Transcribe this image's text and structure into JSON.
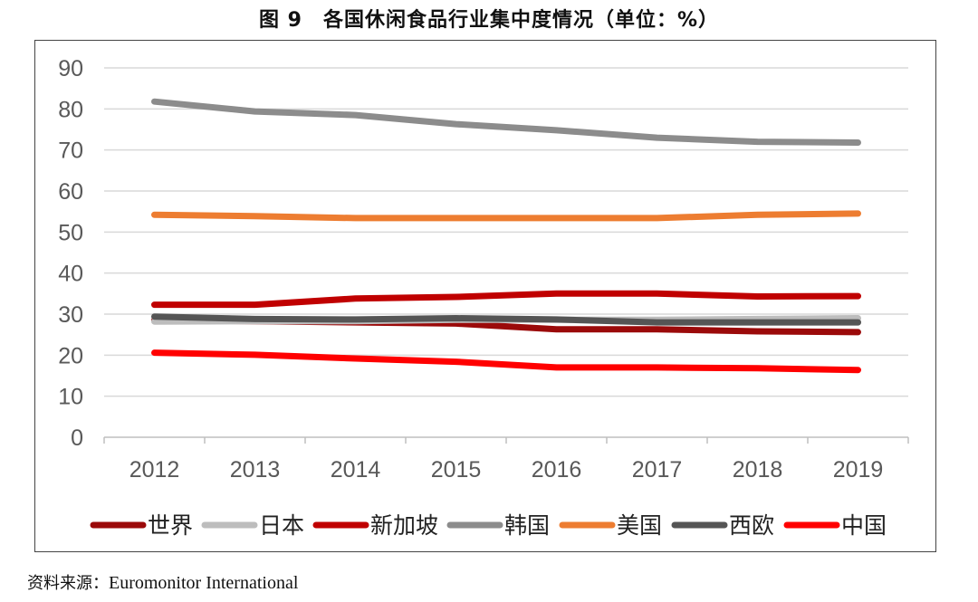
{
  "title": "图 9　各国休闲食品行业集中度情况（单位：%）",
  "source": {
    "label": "资料来源：",
    "text": "Euromonitor International"
  },
  "chart_data": {
    "type": "line",
    "categories": [
      "2012",
      "2013",
      "2014",
      "2015",
      "2016",
      "2017",
      "2018",
      "2019"
    ],
    "ylim": [
      0,
      90
    ],
    "yticks": [
      "0",
      "10",
      "20",
      "30",
      "40",
      "50",
      "60",
      "70",
      "80",
      "90"
    ],
    "grid": true,
    "legend_position": "bottom",
    "series": [
      {
        "name": "世界",
        "color": "#9b0a0a",
        "values": [
          28.5,
          28.3,
          28.0,
          27.7,
          26.3,
          26.3,
          25.8,
          25.6
        ]
      },
      {
        "name": "日本",
        "color": "#bdbdbd",
        "values": [
          28.2,
          28.3,
          28.3,
          28.6,
          28.6,
          28.6,
          28.8,
          29.0
        ]
      },
      {
        "name": "新加坡",
        "color": "#c00000",
        "values": [
          32.3,
          32.3,
          33.8,
          34.2,
          35.0,
          35.0,
          34.3,
          34.4
        ]
      },
      {
        "name": "韩国",
        "color": "#8c8c8c",
        "values": [
          81.8,
          79.4,
          78.5,
          76.3,
          74.8,
          73.0,
          72.0,
          71.8
        ]
      },
      {
        "name": "美国",
        "color": "#ed7d31",
        "values": [
          54.2,
          53.9,
          53.4,
          53.4,
          53.4,
          53.4,
          54.2,
          54.5
        ]
      },
      {
        "name": "西欧",
        "color": "#555555",
        "values": [
          29.4,
          28.8,
          28.7,
          29.0,
          28.7,
          28.0,
          28.0,
          28.0
        ]
      },
      {
        "name": "中国",
        "color": "#ff0000",
        "values": [
          20.6,
          20.1,
          19.2,
          18.4,
          17.0,
          17.0,
          16.8,
          16.4
        ]
      }
    ]
  }
}
